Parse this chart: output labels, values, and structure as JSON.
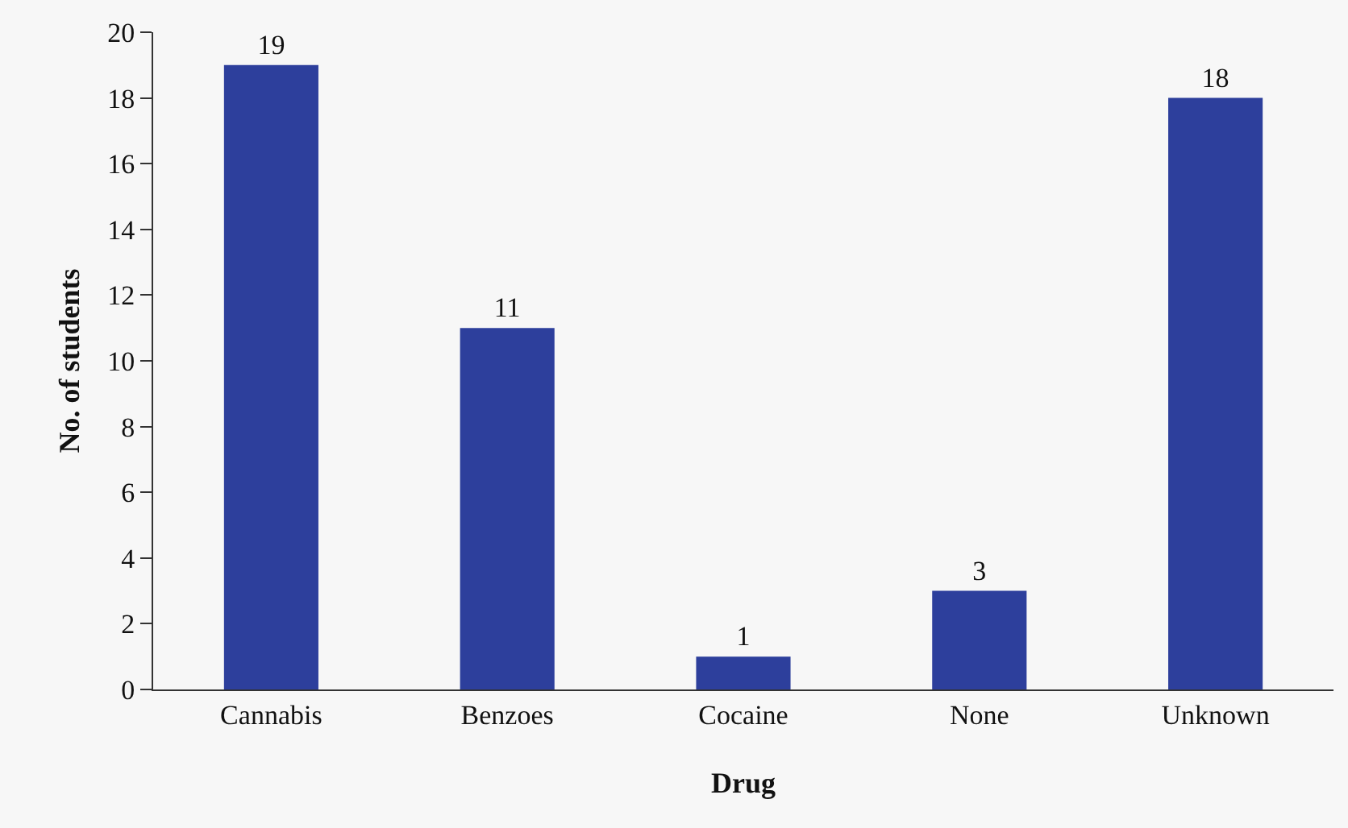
{
  "chart_data": {
    "type": "bar",
    "xlabel": "Drug",
    "ylabel": "No. of students",
    "categories": [
      "Cannabis",
      "Benzoes",
      "Cocaine",
      "None",
      "Unknown"
    ],
    "values": [
      19,
      11,
      1,
      3,
      18
    ],
    "color": "#2d3f9c",
    "ylim": [
      0,
      20
    ],
    "yticks": [
      0,
      2,
      4,
      6,
      8,
      10,
      12,
      14,
      16,
      18,
      20
    ],
    "grid": false,
    "data_labels": true
  }
}
